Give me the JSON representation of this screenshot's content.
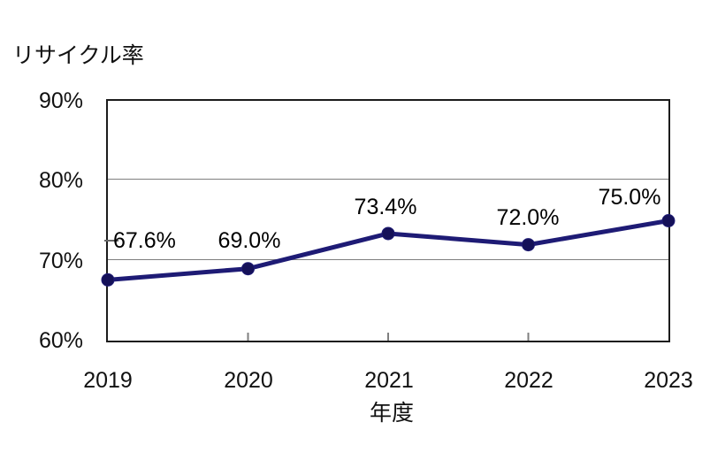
{
  "chart_data": {
    "type": "line",
    "title": "リサイクル率",
    "xlabel": "年度",
    "ylabel": "",
    "categories": [
      "2019",
      "2020",
      "2021",
      "2022",
      "2023"
    ],
    "series": [
      {
        "name": "リサイクル率",
        "values": [
          67.6,
          69.0,
          73.4,
          72.0,
          75.0
        ]
      }
    ],
    "data_labels": [
      "67.6%",
      "69.0%",
      "73.4%",
      "72.0%",
      "75.0%"
    ],
    "ylim": [
      60,
      90
    ],
    "ytick_values": [
      90,
      80,
      70,
      60
    ],
    "ytick_labels": [
      "90%",
      "80%",
      "70%",
      "60%"
    ],
    "gridline_values": [
      80,
      70
    ],
    "grid": "horizontal-only",
    "legend_position": "none",
    "line_color": "#1e1b75",
    "marker_color": "#151158",
    "axis_color": "#1c1c1c",
    "gridline_color": "#7f7f7f",
    "tick_color": "#7f7f7f",
    "background_color": "#ffffff"
  }
}
